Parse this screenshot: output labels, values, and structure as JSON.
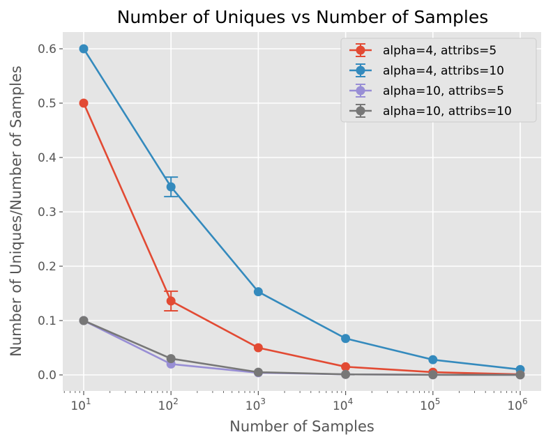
{
  "chart_data": {
    "type": "line",
    "title": "Number of Uniques vs Number of Samples",
    "xlabel": "Number of Samples",
    "ylabel": "Number of Uniques/Number of Samples",
    "x_scale": "log",
    "x": [
      10,
      100,
      1000,
      10000,
      100000,
      1000000
    ],
    "x_tick_labels": [
      {
        "base": "10",
        "exp": "1"
      },
      {
        "base": "10",
        "exp": "2"
      },
      {
        "base": "10",
        "exp": "3"
      },
      {
        "base": "10",
        "exp": "4"
      },
      {
        "base": "10",
        "exp": "5"
      },
      {
        "base": "10",
        "exp": "6"
      }
    ],
    "y_ticks": [
      "0.0",
      "0.1",
      "0.2",
      "0.3",
      "0.4",
      "0.5",
      "0.6"
    ],
    "ylim": [
      -0.03,
      0.63
    ],
    "grid": true,
    "legend_position": "top-right",
    "series": [
      {
        "name": "alpha=4, attribs=5",
        "color": "#E24A33",
        "values": [
          0.5,
          0.136,
          0.05,
          0.015,
          0.005,
          0.001
        ],
        "err": [
          0,
          0.018,
          0,
          0,
          0,
          0
        ]
      },
      {
        "name": "alpha=4, attribs=10",
        "color": "#348ABD",
        "values": [
          0.6,
          0.346,
          0.153,
          0.067,
          0.028,
          0.01
        ],
        "err": [
          0,
          0.018,
          0,
          0,
          0,
          0
        ]
      },
      {
        "name": "alpha=10, attribs=5",
        "color": "#988ED5",
        "values": [
          0.1,
          0.02,
          0.004,
          0.001,
          0.0003,
          0.0001
        ],
        "err": [
          0,
          0,
          0,
          0,
          0,
          0
        ]
      },
      {
        "name": "alpha=10, attribs=10",
        "color": "#777777",
        "values": [
          0.1,
          0.03,
          0.005,
          0.001,
          0.0003,
          0.0001
        ],
        "err": [
          0,
          0,
          0,
          0,
          0,
          0
        ]
      }
    ]
  }
}
